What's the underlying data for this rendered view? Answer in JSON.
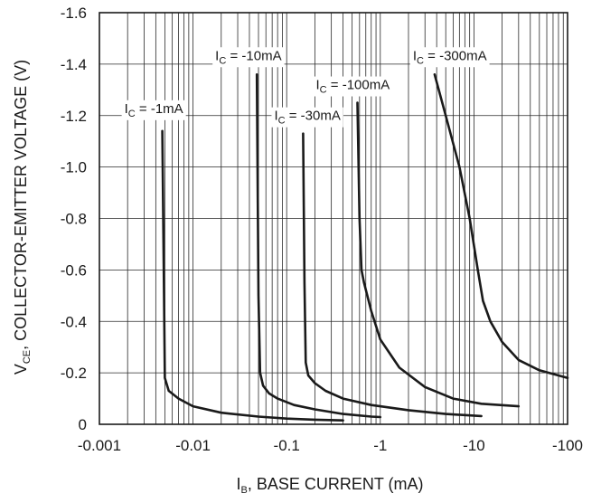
{
  "chart_data": {
    "type": "line",
    "x_scale": "log",
    "xlim": [
      0.001,
      100
    ],
    "ylim": [
      0,
      -1.6
    ],
    "grid": true,
    "xlabel": {
      "main": "I",
      "sub": "B",
      "rest": ", BASE CURRENT (mA)"
    },
    "ylabel": {
      "main": "V",
      "sub": "CE",
      "rest": ", COLLECTOR-EMITTER VOLTAGE (V)"
    },
    "x_ticks": [
      {
        "value": 0.001,
        "label": "-0.001"
      },
      {
        "value": 0.01,
        "label": "-0.01"
      },
      {
        "value": 0.1,
        "label": "-0.1"
      },
      {
        "value": 1,
        "label": "-1"
      },
      {
        "value": 10,
        "label": "-10"
      },
      {
        "value": 100,
        "label": "-100"
      }
    ],
    "y_ticks": [
      {
        "value": 0,
        "label": "0"
      },
      {
        "value": -0.2,
        "label": "-0.2"
      },
      {
        "value": -0.4,
        "label": "-0.4"
      },
      {
        "value": -0.6,
        "label": "-0.6"
      },
      {
        "value": -0.8,
        "label": "-0.8"
      },
      {
        "value": -1.0,
        "label": "-1.0"
      },
      {
        "value": -1.2,
        "label": "-1.2"
      },
      {
        "value": -1.4,
        "label": "-1.4"
      },
      {
        "value": -1.6,
        "label": "-1.6"
      }
    ],
    "series": [
      {
        "label": {
          "main": "I",
          "sub": "C",
          "rest": " = -1mA"
        },
        "x": [
          0.0047,
          0.0049,
          0.005,
          0.0055,
          0.007,
          0.01,
          0.02,
          0.05,
          0.1,
          0.2,
          0.4
        ],
        "y": [
          -1.14,
          -0.5,
          -0.18,
          -0.13,
          -0.1,
          -0.07,
          -0.045,
          -0.03,
          -0.022,
          -0.018,
          -0.015
        ]
      },
      {
        "label": {
          "main": "I",
          "sub": "C",
          "rest": " = -10mA"
        },
        "x": [
          0.048,
          0.05,
          0.052,
          0.056,
          0.065,
          0.08,
          0.12,
          0.2,
          0.4,
          0.8,
          1.0
        ],
        "y": [
          -1.36,
          -0.5,
          -0.2,
          -0.15,
          -0.12,
          -0.1,
          -0.075,
          -0.058,
          -0.04,
          -0.03,
          -0.028
        ]
      },
      {
        "label": {
          "main": "I",
          "sub": "C",
          "rest": " = -30mA"
        },
        "x": [
          0.15,
          0.155,
          0.16,
          0.17,
          0.2,
          0.26,
          0.4,
          0.8,
          2.0,
          5.0,
          12.0
        ],
        "y": [
          -1.13,
          -0.55,
          -0.24,
          -0.19,
          -0.16,
          -0.13,
          -0.1,
          -0.075,
          -0.055,
          -0.04,
          -0.032
        ]
      },
      {
        "label": {
          "main": "I",
          "sub": "C",
          "rest": " = -100mA"
        },
        "x": [
          0.57,
          0.6,
          0.63,
          0.67,
          0.8,
          1.0,
          1.6,
          3.0,
          6.0,
          12.0,
          30.0
        ],
        "y": [
          -1.25,
          -0.8,
          -0.6,
          -0.55,
          -0.44,
          -0.33,
          -0.22,
          -0.145,
          -0.1,
          -0.08,
          -0.07
        ]
      },
      {
        "label": {
          "main": "I",
          "sub": "C",
          "rest": " = -300mA"
        },
        "x": [
          3.8,
          5.0,
          7.0,
          9.0,
          11.0,
          12.5,
          15.0,
          20.0,
          30.0,
          50.0,
          100.0
        ],
        "y": [
          -1.36,
          -1.2,
          -1.0,
          -0.8,
          -0.6,
          -0.48,
          -0.4,
          -0.32,
          -0.25,
          -0.21,
          -0.18
        ]
      }
    ]
  }
}
